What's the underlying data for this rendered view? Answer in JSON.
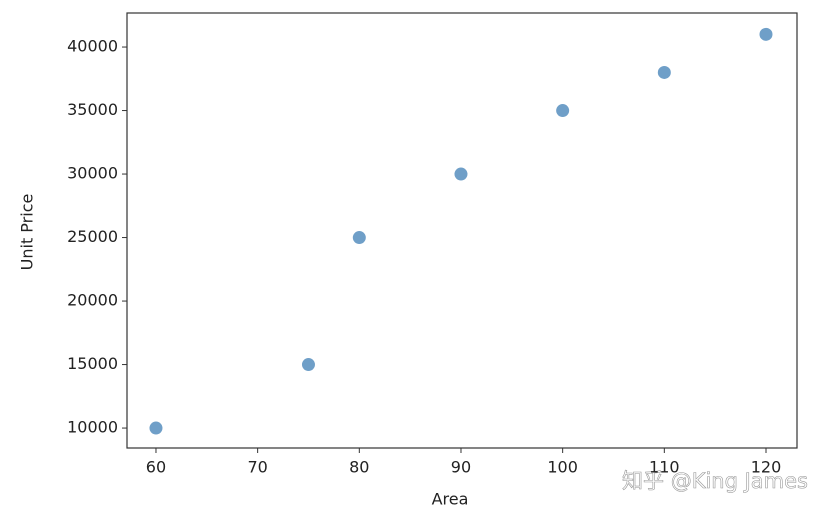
{
  "chart_data": {
    "type": "scatter",
    "xlabel": "Area",
    "ylabel": "Unit Price",
    "x": [
      60,
      75,
      80,
      90,
      100,
      110,
      120
    ],
    "values": [
      10000,
      15000,
      25000,
      30000,
      35000,
      38000,
      41000
    ],
    "color": "#6f9fc8",
    "xlim": [
      57.15,
      123.05
    ],
    "ylim": [
      8430,
      42680
    ],
    "xticks": [
      60,
      70,
      80,
      90,
      100,
      110,
      120
    ],
    "yticks": [
      10000,
      15000,
      20000,
      25000,
      30000,
      35000,
      40000
    ],
    "grid": false,
    "annotation": "知乎 @King James"
  }
}
